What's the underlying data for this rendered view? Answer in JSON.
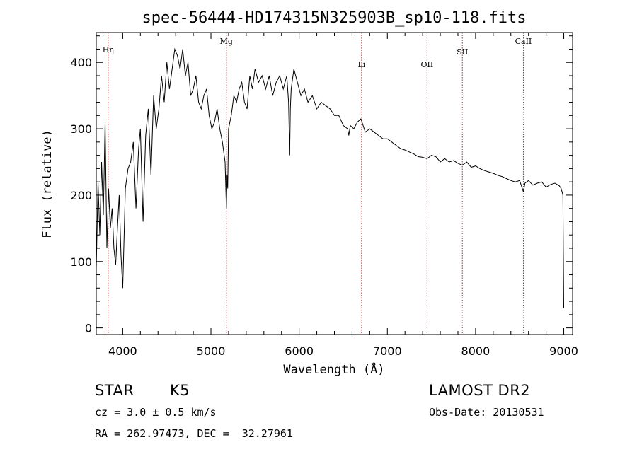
{
  "chart_data": {
    "type": "line",
    "title": "spec-56444-HD174315N325903B_sp10-118.fits",
    "xlabel": "Wavelength (Å)",
    "ylabel": "Flux (relative)",
    "xlim": [
      3700,
      9100
    ],
    "ylim": [
      -10,
      445
    ],
    "x_ticks": [
      4000,
      5000,
      6000,
      7000,
      8000,
      9000
    ],
    "y_ticks": [
      0,
      100,
      200,
      300,
      400
    ],
    "grid": false,
    "series": [
      {
        "color": "#000000",
        "x": [
          3700,
          3720,
          3740,
          3760,
          3780,
          3800,
          3820,
          3840,
          3860,
          3880,
          3900,
          3920,
          3940,
          3960,
          3980,
          4000,
          4030,
          4060,
          4090,
          4120,
          4150,
          4180,
          4200,
          4230,
          4260,
          4290,
          4320,
          4350,
          4380,
          4410,
          4440,
          4470,
          4500,
          4530,
          4560,
          4590,
          4620,
          4650,
          4680,
          4710,
          4740,
          4770,
          4800,
          4830,
          4860,
          4890,
          4920,
          4950,
          4980,
          5010,
          5040,
          5070,
          5100,
          5130,
          5160,
          5175,
          5183,
          5190,
          5200,
          5230,
          5260,
          5290,
          5320,
          5350,
          5380,
          5410,
          5440,
          5470,
          5500,
          5540,
          5580,
          5620,
          5660,
          5700,
          5740,
          5780,
          5820,
          5860,
          5880,
          5893,
          5900,
          5910,
          5940,
          5980,
          6020,
          6060,
          6100,
          6150,
          6200,
          6250,
          6300,
          6350,
          6400,
          6450,
          6500,
          6550,
          6563,
          6580,
          6620,
          6660,
          6700,
          6750,
          6800,
          6850,
          6900,
          6950,
          7000,
          7050,
          7100,
          7150,
          7200,
          7250,
          7300,
          7350,
          7400,
          7450,
          7500,
          7550,
          7600,
          7650,
          7700,
          7750,
          7800,
          7850,
          7900,
          7950,
          8000,
          8050,
          8100,
          8150,
          8200,
          8250,
          8300,
          8350,
          8400,
          8450,
          8500,
          8542,
          8560,
          8600,
          8650,
          8700,
          8750,
          8800,
          8850,
          8900,
          8950,
          8970,
          8990,
          9000
        ],
        "values": [
          90,
          220,
          140,
          250,
          170,
          310,
          120,
          210,
          150,
          180,
          120,
          95,
          150,
          200,
          110,
          60,
          210,
          240,
          250,
          280,
          180,
          270,
          300,
          160,
          290,
          330,
          230,
          350,
          300,
          330,
          380,
          340,
          400,
          360,
          390,
          420,
          410,
          390,
          420,
          380,
          400,
          350,
          360,
          380,
          340,
          330,
          350,
          360,
          320,
          300,
          310,
          330,
          300,
          280,
          250,
          180,
          230,
          210,
          300,
          320,
          350,
          340,
          360,
          370,
          340,
          330,
          380,
          360,
          390,
          370,
          380,
          360,
          380,
          350,
          370,
          380,
          360,
          380,
          340,
          260,
          330,
          360,
          390,
          370,
          350,
          360,
          340,
          350,
          330,
          340,
          335,
          330,
          320,
          320,
          305,
          300,
          290,
          305,
          300,
          310,
          315,
          295,
          300,
          295,
          290,
          285,
          285,
          280,
          275,
          270,
          268,
          265,
          262,
          258,
          257,
          255,
          260,
          258,
          250,
          255,
          250,
          252,
          248,
          245,
          250,
          242,
          244,
          240,
          237,
          235,
          233,
          230,
          228,
          225,
          222,
          220,
          222,
          205,
          218,
          222,
          215,
          218,
          220,
          212,
          216,
          218,
          214,
          210,
          200,
          30
        ]
      }
    ],
    "annotations": [
      {
        "label": "Hη",
        "x": 3835
      },
      {
        "label": "Mg",
        "x": 5175
      },
      {
        "label": "Li",
        "x": 6708
      },
      {
        "label": "OII",
        "x": 7450
      },
      {
        "label": "SII",
        "x": 7850
      },
      {
        "label": "CaII",
        "x": 8542
      }
    ]
  },
  "info": {
    "object_class": "STAR",
    "subclass": "K5",
    "survey": "LAMOST DR2",
    "cz": "cz = 3.0 ± 0.5 km/s",
    "obs_date": "Obs-Date: 20130531",
    "coords": "RA = 262.97473, DEC =  32.27961"
  }
}
